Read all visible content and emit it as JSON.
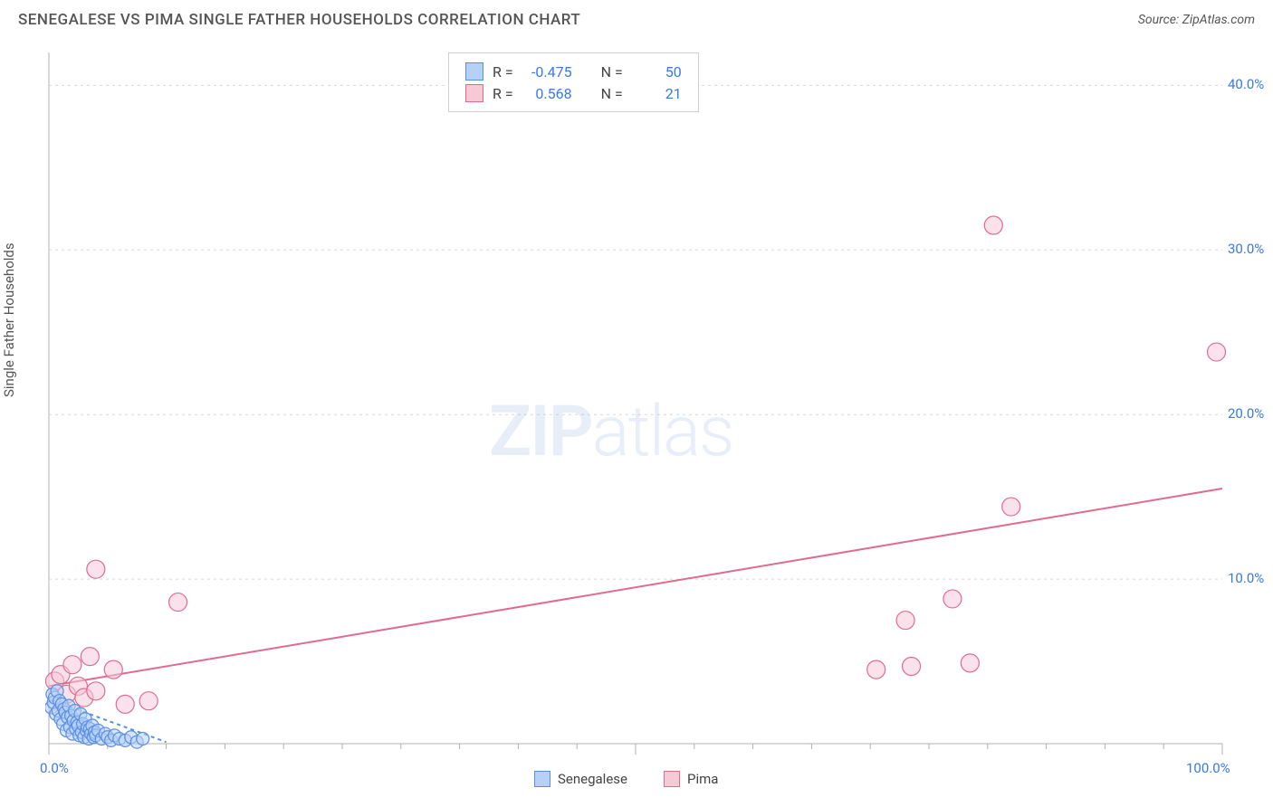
{
  "header": {
    "title": "SENEGALESE VS PIMA SINGLE FATHER HOUSEHOLDS CORRELATION CHART",
    "source": "Source: ZipAtlas.com"
  },
  "axes": {
    "y_label": "Single Father Households",
    "x_min_label": "0.0%",
    "x_max_label": "100.0%",
    "y_ticks": [
      {
        "value": 10,
        "label": "10.0%"
      },
      {
        "value": 20,
        "label": "20.0%"
      },
      {
        "value": 30,
        "label": "30.0%"
      },
      {
        "value": 40,
        "label": "40.0%"
      }
    ],
    "xlim": [
      0,
      100
    ],
    "ylim": [
      0,
      42
    ],
    "grid_color": "#d8d8d8",
    "axis_color": "#b0b0b0",
    "tick_minor_x_step": 5,
    "tick_major_x_step": 50
  },
  "watermark": {
    "text_bold": "ZIP",
    "text_light": "atlas"
  },
  "series": {
    "senegalese": {
      "label": "Senegalese",
      "fill": "#b7d0f5",
      "stroke": "#5a8ee0",
      "r_label": "R =",
      "r_value": "-0.475",
      "n_label": "N =",
      "n_value": "50",
      "marker_radius": 7,
      "points": [
        [
          0.2,
          2.2
        ],
        [
          0.3,
          3.0
        ],
        [
          0.4,
          2.5
        ],
        [
          0.5,
          2.8
        ],
        [
          0.6,
          1.8
        ],
        [
          0.7,
          3.2
        ],
        [
          0.8,
          2.0
        ],
        [
          0.9,
          2.6
        ],
        [
          1.0,
          1.5
        ],
        [
          1.1,
          2.4
        ],
        [
          1.2,
          1.2
        ],
        [
          1.3,
          2.1
        ],
        [
          1.4,
          1.9
        ],
        [
          1.5,
          0.8
        ],
        [
          1.6,
          1.6
        ],
        [
          1.7,
          2.3
        ],
        [
          1.8,
          1.0
        ],
        [
          1.9,
          1.7
        ],
        [
          2.0,
          0.6
        ],
        [
          2.1,
          1.4
        ],
        [
          2.2,
          2.0
        ],
        [
          2.3,
          0.9
        ],
        [
          2.4,
          1.3
        ],
        [
          2.5,
          1.1
        ],
        [
          2.6,
          0.5
        ],
        [
          2.7,
          1.8
        ],
        [
          2.8,
          0.7
        ],
        [
          2.9,
          1.2
        ],
        [
          3.0,
          0.4
        ],
        [
          3.1,
          1.5
        ],
        [
          3.2,
          0.8
        ],
        [
          3.3,
          1.0
        ],
        [
          3.4,
          0.3
        ],
        [
          3.5,
          0.9
        ],
        [
          3.6,
          0.6
        ],
        [
          3.7,
          1.1
        ],
        [
          3.8,
          0.4
        ],
        [
          3.9,
          0.7
        ],
        [
          4.0,
          0.5
        ],
        [
          4.2,
          0.8
        ],
        [
          4.5,
          0.3
        ],
        [
          4.8,
          0.6
        ],
        [
          5.0,
          0.4
        ],
        [
          5.3,
          0.2
        ],
        [
          5.6,
          0.5
        ],
        [
          6.0,
          0.3
        ],
        [
          6.5,
          0.2
        ],
        [
          7.0,
          0.4
        ],
        [
          7.5,
          0.1
        ],
        [
          8.0,
          0.3
        ]
      ],
      "trend": {
        "x1": 0,
        "y1": 2.7,
        "x2": 10,
        "y2": 0.1,
        "dash": "4,4"
      }
    },
    "pima": {
      "label": "Pima",
      "fill": "#f7c9d7",
      "stroke": "#e06b8f",
      "r_label": "R =",
      "r_value": "0.568",
      "n_label": "N =",
      "n_value": "21",
      "marker_radius": 10,
      "points": [
        [
          0.5,
          3.8
        ],
        [
          1.0,
          4.2
        ],
        [
          1.5,
          3.0
        ],
        [
          2.0,
          4.8
        ],
        [
          2.5,
          3.5
        ],
        [
          3.0,
          2.8
        ],
        [
          3.5,
          5.3
        ],
        [
          4.0,
          3.2
        ],
        [
          4.0,
          10.6
        ],
        [
          5.5,
          4.5
        ],
        [
          6.5,
          2.4
        ],
        [
          8.5,
          2.6
        ],
        [
          11.0,
          8.6
        ],
        [
          70.5,
          4.5
        ],
        [
          73.5,
          4.7
        ],
        [
          77.0,
          8.8
        ],
        [
          78.5,
          4.9
        ],
        [
          80.5,
          31.5
        ],
        [
          82.0,
          14.4
        ],
        [
          73.0,
          7.5
        ],
        [
          99.5,
          23.8
        ]
      ],
      "trend": {
        "x1": 0,
        "y1": 3.5,
        "x2": 100,
        "y2": 15.5,
        "dash": "none"
      }
    }
  },
  "legend": {
    "items": [
      {
        "key": "senegalese"
      },
      {
        "key": "pima"
      }
    ]
  },
  "styling": {
    "background_color": "#ffffff",
    "title_color": "#555555",
    "label_color": "#555555",
    "tick_label_color": "#3a79e0",
    "title_fontsize": 17,
    "axis_label_fontsize": 15,
    "tick_fontsize": 15,
    "stats_fontsize": 16
  }
}
